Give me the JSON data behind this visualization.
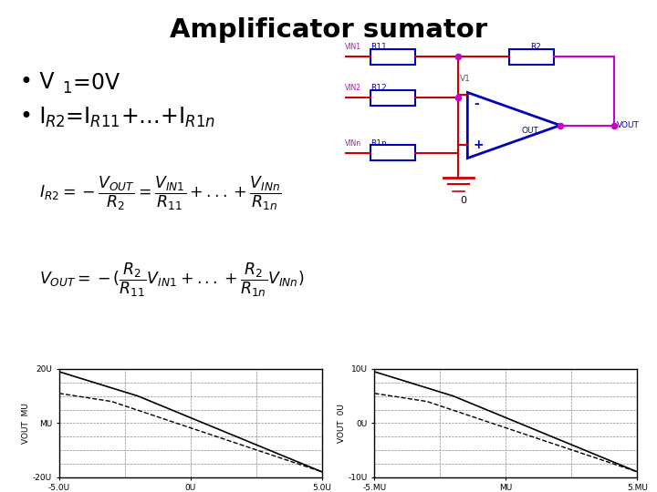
{
  "title": "Amplificator sumator",
  "bullet1": "V$_1$=0V",
  "bullet2": "I$_{R2}$=I$_{R11}$+…+I$_{R1n}$",
  "formula1": "$I_{R2} = -\\dfrac{V_{OUT}}{R_2} = \\dfrac{V_{IN1}}{R_{11}} + ... + \\dfrac{V_{INn}}{R_{1n}}$",
  "formula2": "$V_{OUT} = -(\\dfrac{R_2}{R_{11}}V_{IN1} + ... + \\dfrac{R_2}{R_{1n}}V_{INn})$",
  "bg_color": "#ffffff",
  "text_color": "#000000",
  "blue": "#0000bb",
  "magenta": "#cc00cc",
  "red": "#cc0000"
}
